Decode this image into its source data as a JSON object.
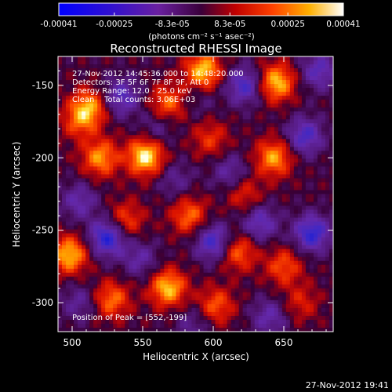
{
  "chart_data": {
    "type": "heatmap",
    "title": "Reconstructed RHESSI Image",
    "xlabel": "Heliocentric X (arcsec)",
    "ylabel": "Heliocentric Y (arcsec)",
    "xlim": [
      490,
      685
    ],
    "ylim": [
      -320,
      -130
    ],
    "x_ticks": [
      "500",
      "550",
      "600",
      "650"
    ],
    "x_tick_values": [
      500,
      550,
      600,
      650
    ],
    "y_ticks": [
      "-150",
      "-200",
      "-250",
      "-300"
    ],
    "y_tick_values": [
      -150,
      -200,
      -250,
      -300
    ],
    "colorbar": {
      "tick_labels": [
        "-0.00041",
        "-0.00025",
        "-8.3e-05",
        "8.3e-05",
        "0.00025",
        "0.00041"
      ],
      "tick_values": [
        -0.00041,
        -0.00025,
        -8.3e-05,
        8.3e-05,
        0.00025,
        0.00041
      ],
      "range": [
        -0.00041,
        0.00041
      ],
      "units_label": "(photons cm⁻² s⁻¹ asec⁻²)",
      "colormap": "blue-purple-red-yellow-white"
    },
    "annotations": [
      "27-Nov-2012 14:45:36.000 to 14:48:20.000",
      "Detectors: 3F 5F 6F 7F 8F 9F, Att 0",
      "Energy Range: 12.0 - 25.0 keV",
      "Clean    Total counts: 3.06E+03"
    ],
    "peak_label": "Position of Peak = [552,-199]",
    "peak": [
      552,
      -199
    ],
    "blobs": [
      {
        "x": 552,
        "y": -199,
        "v": 1.0
      },
      {
        "x": 593,
        "y": -140,
        "v": 0.88
      },
      {
        "x": 645,
        "y": -148,
        "v": 0.85
      },
      {
        "x": 512,
        "y": -165,
        "v": 0.7
      },
      {
        "x": 520,
        "y": -200,
        "v": 0.72
      },
      {
        "x": 568,
        "y": -162,
        "v": 0.6
      },
      {
        "x": 498,
        "y": -267,
        "v": 0.85
      },
      {
        "x": 568,
        "y": -290,
        "v": 0.85
      },
      {
        "x": 528,
        "y": -298,
        "v": 0.62
      },
      {
        "x": 602,
        "y": -302,
        "v": 0.55
      },
      {
        "x": 538,
        "y": -243,
        "v": 0.5
      },
      {
        "x": 583,
        "y": -240,
        "v": 0.6
      },
      {
        "x": 643,
        "y": -200,
        "v": 0.75
      },
      {
        "x": 618,
        "y": -265,
        "v": 0.58
      },
      {
        "x": 650,
        "y": -275,
        "v": 0.52
      },
      {
        "x": 505,
        "y": -175,
        "v": 0.45
      },
      {
        "x": 598,
        "y": -187,
        "v": 0.42
      },
      {
        "x": 622,
        "y": -225,
        "v": 0.4
      },
      {
        "x": 662,
        "y": -300,
        "v": 0.35
      },
      {
        "x": 573,
        "y": -215,
        "v": -0.3
      },
      {
        "x": 525,
        "y": -255,
        "v": -0.85
      },
      {
        "x": 535,
        "y": -158,
        "v": -0.6
      },
      {
        "x": 622,
        "y": -150,
        "v": -0.65
      },
      {
        "x": 675,
        "y": -140,
        "v": -0.55
      },
      {
        "x": 600,
        "y": -258,
        "v": -0.7
      },
      {
        "x": 633,
        "y": -245,
        "v": -0.55
      },
      {
        "x": 670,
        "y": -252,
        "v": -0.8
      },
      {
        "x": 665,
        "y": -185,
        "v": -0.65
      },
      {
        "x": 548,
        "y": -270,
        "v": -0.4
      },
      {
        "x": 612,
        "y": -210,
        "v": -0.4
      },
      {
        "x": 505,
        "y": -230,
        "v": -0.45
      },
      {
        "x": 560,
        "y": -180,
        "v": -0.3
      },
      {
        "x": 590,
        "y": -160,
        "v": -0.2
      },
      {
        "x": 640,
        "y": -310,
        "v": -0.45
      },
      {
        "x": 505,
        "y": -300,
        "v": -0.35
      },
      {
        "x": 586,
        "y": -315,
        "v": -0.3
      }
    ]
  },
  "footer": {
    "timestamp": "27-Nov-2012 19:41"
  }
}
